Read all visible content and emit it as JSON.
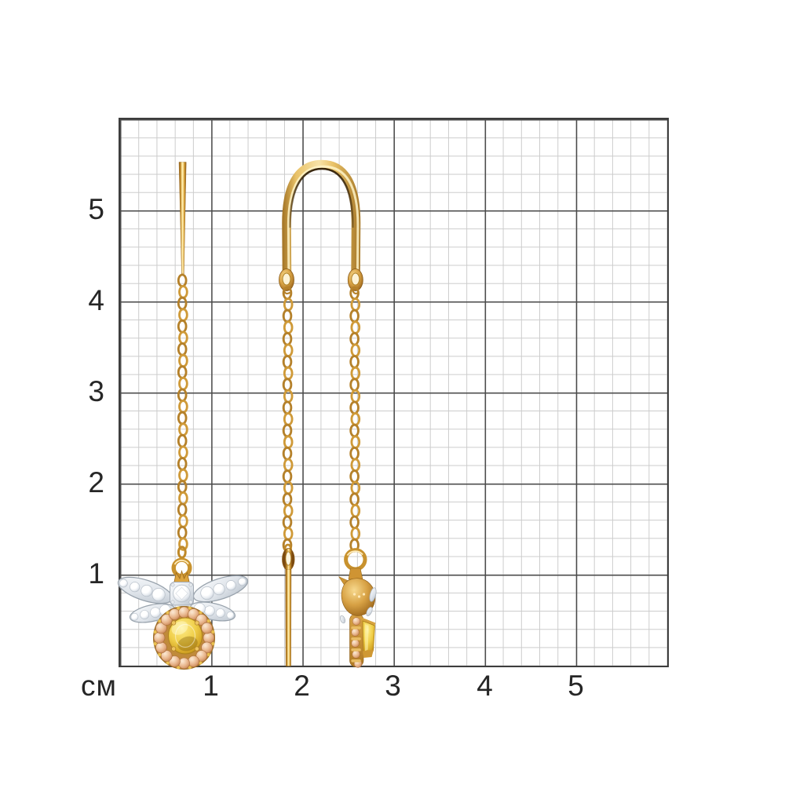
{
  "measurement_grid": {
    "unit_label": "см",
    "x_ticks": [
      "1",
      "2",
      "3",
      "4",
      "5"
    ],
    "y_ticks": [
      "5",
      "4",
      "3",
      "2",
      "1"
    ],
    "minor_cells_per_cm": 5,
    "cm_columns": 6,
    "cm_rows": 6,
    "colors": {
      "background": "#ffffff",
      "minor_line": "#cccccc",
      "major_line": "#4a4a4a",
      "border": "#3d3d3d",
      "label_text": "#262626"
    }
  },
  "product": {
    "name": "Gold threader chain earrings with bee charm",
    "views": [
      {
        "id": "front-view",
        "description": "Earring front view: straight pull-through pin, cable chain, bee charm with diamond pave wings, central round diamond and oval yellow gemstone in a champagne-stone halo"
      },
      {
        "id": "side-view",
        "description": "Earring side view: U-shaped threader bar with pierced ends, cable chain with needle pin, bee charm seen edge-on"
      }
    ],
    "materials": {
      "gold": "#c8922e",
      "gold_light": "#f0d28a",
      "gold_highlight": "#ffedbd",
      "gold_shadow": "#7c4a10",
      "white_gold": "#e8ecf1",
      "diamond": "#ffffff",
      "citrine": "#eec93e",
      "champagne_stone": "#e8b58c"
    }
  }
}
